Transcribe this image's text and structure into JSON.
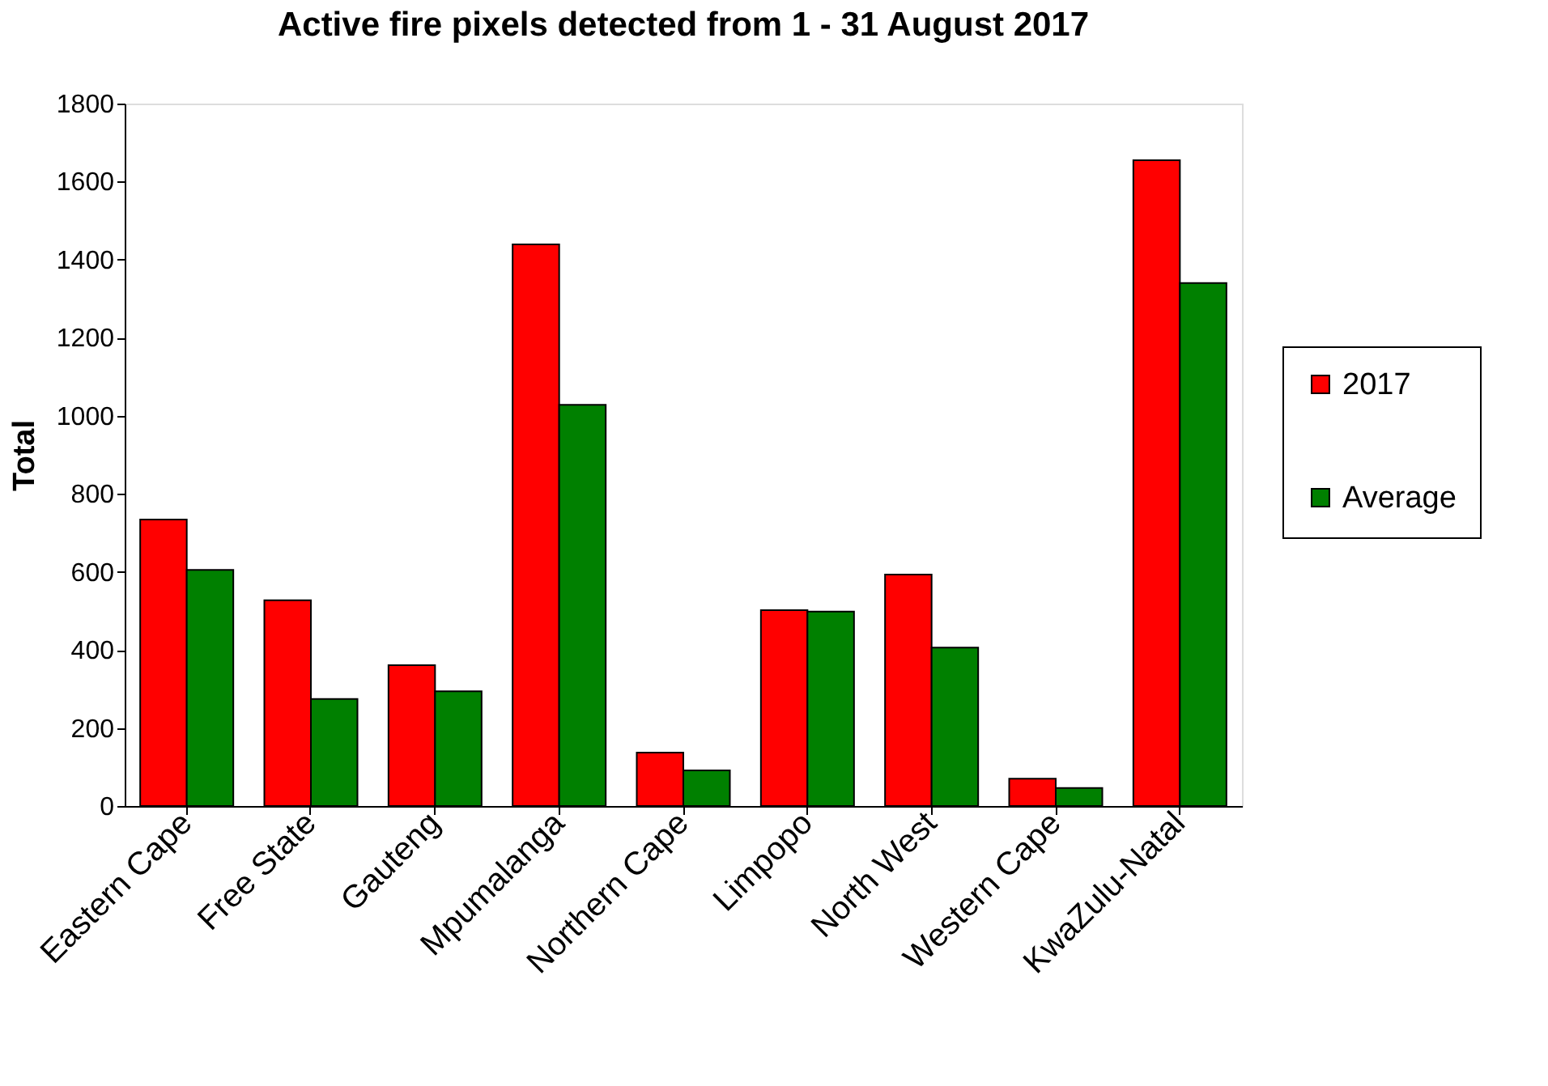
{
  "chart_data": {
    "type": "bar",
    "title": "Active fire pixels detected from 1 - 31 August 2017",
    "ylabel": "Total",
    "categories": [
      "Eastern Cape",
      "Free State",
      "Gauteng",
      "Mpumalanga",
      "Northern Cape",
      "Limpopo",
      "North West",
      "Western Cape",
      "KwaZulu-Natal"
    ],
    "series": [
      {
        "name": "2017",
        "color": "#ff0000",
        "values": [
          734,
          527,
          361,
          1439,
          137,
          502,
          593,
          70,
          1655
        ]
      },
      {
        "name": "Average",
        "color": "#008000",
        "values": [
          605,
          274,
          294,
          1028,
          91,
          498,
          406,
          46,
          1340
        ]
      }
    ],
    "ylim": [
      0,
      1800
    ],
    "yticks": [
      0,
      200,
      400,
      600,
      800,
      1000,
      1200,
      1400,
      1600,
      1800
    ],
    "grid": false,
    "legend": "right"
  }
}
